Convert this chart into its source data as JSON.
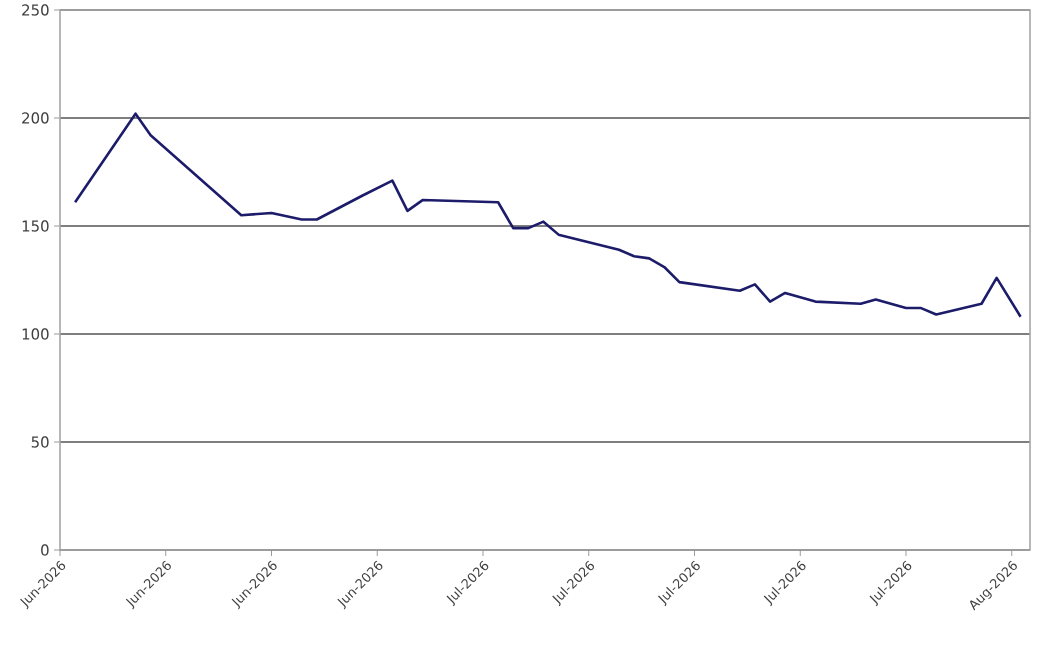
{
  "chart_data": {
    "type": "line",
    "x": [
      "2026-06-04",
      "2026-06-08",
      "2026-06-09",
      "2026-06-15",
      "2026-06-17",
      "2026-06-19",
      "2026-06-20",
      "2026-06-23",
      "2026-06-25",
      "2026-06-26",
      "2026-06-27",
      "2026-07-02",
      "2026-07-03",
      "2026-07-04",
      "2026-07-05",
      "2026-07-06",
      "2026-07-10",
      "2026-07-11",
      "2026-07-12",
      "2026-07-13",
      "2026-07-14",
      "2026-07-18",
      "2026-07-19",
      "2026-07-20",
      "2026-07-21",
      "2026-07-23",
      "2026-07-26",
      "2026-07-27",
      "2026-07-29",
      "2026-07-30",
      "2026-07-31",
      "2026-08-03",
      "2026-08-04",
      "2026-08-05T14:00"
    ],
    "series": [
      {
        "color": "#1c1c6b",
        "values": [
          161,
          202,
          192,
          155,
          156,
          153,
          153,
          164,
          171,
          157,
          162,
          161,
          149,
          149,
          152,
          146,
          139,
          136,
          135,
          131,
          124,
          120,
          123,
          115,
          119,
          115,
          114,
          116,
          112,
          112,
          109,
          114,
          126,
          108
        ]
      }
    ],
    "xlim": [
      "2026-06-03",
      "2026-08-06T05:00"
    ],
    "xticks": [
      {
        "value": "2026-06-03",
        "label": "Jun-2026"
      },
      {
        "value": "2026-06-10",
        "label": "Jun-2026"
      },
      {
        "value": "2026-06-17",
        "label": "Jun-2026"
      },
      {
        "value": "2026-06-24",
        "label": "Jun-2026"
      },
      {
        "value": "2026-07-01",
        "label": "Jul-2026"
      },
      {
        "value": "2026-07-08",
        "label": "Jul-2026"
      },
      {
        "value": "2026-07-15",
        "label": "Jul-2026"
      },
      {
        "value": "2026-07-22",
        "label": "Jul-2026"
      },
      {
        "value": "2026-07-29",
        "label": "Jul-2026"
      },
      {
        "value": "2026-08-05",
        "label": "Aug-2026"
      }
    ],
    "ylim": [
      0,
      250
    ],
    "yticks": [
      0,
      50,
      100,
      150,
      200,
      250
    ],
    "grid": "y",
    "marker": "none",
    "line_style": "solid"
  }
}
